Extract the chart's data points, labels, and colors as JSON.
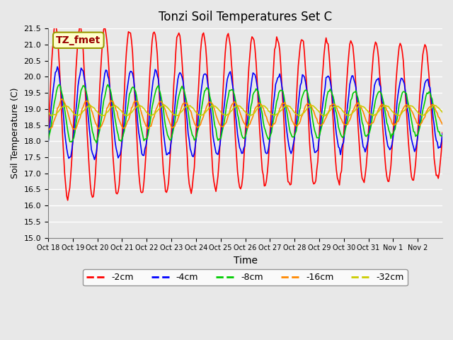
{
  "title": "Tonzi Soil Temperatures Set C",
  "xlabel": "Time",
  "ylabel": "Soil Temperature (C)",
  "ylim": [
    15.0,
    21.5
  ],
  "yticks": [
    15.0,
    15.5,
    16.0,
    16.5,
    17.0,
    17.5,
    18.0,
    18.5,
    19.0,
    19.5,
    20.0,
    20.5,
    21.0,
    21.5
  ],
  "xtick_labels": [
    "Oct 18",
    "Oct 19",
    "Oct 20",
    "Oct 21",
    "Oct 22",
    "Oct 23",
    "Oct 24",
    "Oct 25",
    "Oct 26",
    "Oct 27",
    "Oct 28",
    "Oct 29",
    "Oct 30",
    "Oct 31",
    "Nov 1",
    "Nov 2"
  ],
  "bg_color": "#e8e8e8",
  "plot_bg_color": "#e8e8e8",
  "legend_label": "TZ_fmet",
  "legend_bg": "#ffffcc",
  "legend_border": "#999900",
  "legend_text_color": "#990000",
  "series_labels": [
    "-2cm",
    "-4cm",
    "-8cm",
    "-16cm",
    "-32cm"
  ],
  "series_colors": [
    "#ff0000",
    "#0000ff",
    "#00cc00",
    "#ff8800",
    "#cccc00"
  ]
}
